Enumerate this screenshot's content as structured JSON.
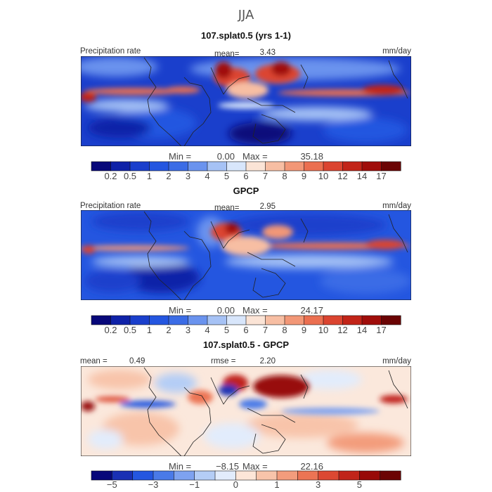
{
  "page_title": "JJA",
  "chart_data": [
    {
      "type": "heatmap",
      "title": "107.splat0.5 (yrs 1-1)",
      "left_label": "Precipitation rate",
      "stat_label": "mean=",
      "stat_value": "3.43",
      "units": "mm/day",
      "min_label": "Min =",
      "min_value": "0.00",
      "max_label": "Max =",
      "max_value": "35.18",
      "levels": [
        "0.2",
        "0.5",
        "1",
        "2",
        "3",
        "4",
        "5",
        "6",
        "7",
        "8",
        "9",
        "10",
        "12",
        "14",
        "17"
      ],
      "colors": [
        "#08087a",
        "#0f22a8",
        "#1a3fcc",
        "#2456e0",
        "#3b6ce6",
        "#6a93ee",
        "#a6c2f5",
        "#d8e6fb",
        "#fbe4d6",
        "#f7bea3",
        "#f29777",
        "#eb6f50",
        "#db4430",
        "#c22418",
        "#a00d0a",
        "#6b0404"
      ]
    },
    {
      "type": "heatmap",
      "title": "GPCP",
      "left_label": "Precipitation rate",
      "stat_label": "mean=",
      "stat_value": "2.95",
      "units": "mm/day",
      "min_label": "Min =",
      "min_value": "0.00",
      "max_label": "Max =",
      "max_value": "24.17",
      "levels": [
        "0.2",
        "0.5",
        "1",
        "2",
        "3",
        "4",
        "5",
        "6",
        "7",
        "8",
        "9",
        "10",
        "12",
        "14",
        "17"
      ],
      "colors": [
        "#08087a",
        "#0f22a8",
        "#1a3fcc",
        "#2456e0",
        "#3b6ce6",
        "#6a93ee",
        "#a6c2f5",
        "#d8e6fb",
        "#fbe4d6",
        "#f7bea3",
        "#f29777",
        "#eb6f50",
        "#db4430",
        "#c22418",
        "#a00d0a",
        "#6b0404"
      ]
    },
    {
      "type": "heatmap",
      "title": "107.splat0.5 - GPCP",
      "left_label": "mean =",
      "left_value": "0.49",
      "stat_label": "rmse =",
      "stat_value": "2.20",
      "units": "mm/day",
      "min_label": "Min =",
      "min_value": "−8.15",
      "max_label": "Max =",
      "max_value": "22.16",
      "levels": [
        "−5",
        "",
        "−3",
        "",
        "−1",
        "",
        "0",
        "",
        "1",
        "",
        "3",
        "",
        "5",
        ""
      ],
      "colors": [
        "#08087a",
        "#1a30b4",
        "#2456e0",
        "#4a7ae8",
        "#7ea2f0",
        "#b4cdf6",
        "#e2ecfc",
        "#fde6d8",
        "#f8c4aa",
        "#f39c7c",
        "#ec7454",
        "#dc4832",
        "#c0241a",
        "#980a08",
        "#6b0404"
      ]
    }
  ]
}
